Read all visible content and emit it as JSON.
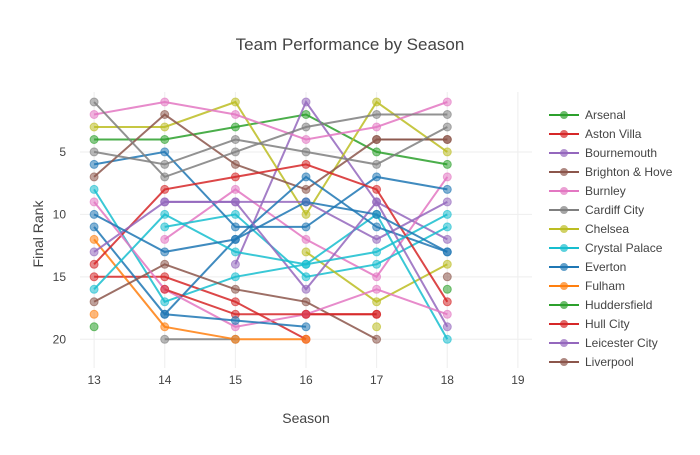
{
  "chart_data": {
    "type": "line",
    "title": "Team Performance by Season",
    "xlabel": "Season",
    "ylabel": "Final Rank",
    "x_ticks": [
      13,
      14,
      15,
      16,
      17,
      18,
      19
    ],
    "y_ticks": [
      5,
      10,
      15,
      20
    ],
    "xlim": [
      12.8,
      19.2
    ],
    "ylim": [
      22.3,
      0.2
    ],
    "y_reversed": true,
    "grid": true,
    "legend_position": "right",
    "series": [
      {
        "name": "Arsenal",
        "color": "#2ca02c",
        "points": [
          [
            13,
            4
          ],
          [
            14,
            4
          ],
          [
            15,
            3
          ],
          [
            16,
            2
          ],
          [
            17,
            5
          ],
          [
            18,
            6
          ]
        ]
      },
      {
        "name": "Aston Villa",
        "color": "#d62728",
        "points": [
          [
            13,
            15
          ],
          [
            14,
            15
          ],
          [
            15,
            17
          ],
          [
            16,
            20
          ]
        ]
      },
      {
        "name": "Bournemouth",
        "color": "#9467bd",
        "points": [
          [
            15,
            14
          ],
          [
            16,
            1
          ],
          [
            17,
            9
          ],
          [
            18,
            12
          ]
        ]
      },
      {
        "name": "Brighton & Hove",
        "color": "#8c564b",
        "points": [
          [
            17,
            4
          ],
          [
            18,
            4
          ]
        ]
      },
      {
        "name": "Burnley",
        "color": "#e377c2",
        "points": [
          [
            14,
            12
          ],
          [
            15,
            8
          ],
          [
            16,
            12
          ],
          [
            17,
            15
          ],
          [
            18,
            7
          ]
        ]
      },
      {
        "name": "Cardiff City",
        "color": "#7f7f7f",
        "points": [
          [
            14,
            20
          ],
          [
            15,
            20
          ]
        ]
      },
      {
        "name": "Chelsea",
        "color": "#bcbd22",
        "points": [
          [
            13,
            3
          ],
          [
            14,
            3
          ],
          [
            15,
            1
          ],
          [
            16,
            10
          ],
          [
            17,
            1
          ],
          [
            18,
            5
          ]
        ]
      },
      {
        "name": "Crystal Palace",
        "color": "#17becf",
        "points": [
          [
            14,
            11
          ],
          [
            15,
            10
          ],
          [
            16,
            15
          ],
          [
            17,
            14
          ],
          [
            18,
            11
          ]
        ]
      },
      {
        "name": "Everton",
        "color": "#1f77b4",
        "points": [
          [
            13,
            6
          ],
          [
            14,
            5
          ],
          [
            15,
            11
          ],
          [
            16,
            11
          ],
          [
            17,
            7
          ],
          [
            18,
            8
          ]
        ]
      },
      {
        "name": "Fulham",
        "color": "#ff7f0e",
        "points": [
          [
            13,
            12
          ],
          [
            14,
            19
          ],
          [
            15,
            20
          ],
          [
            16,
            20
          ]
        ]
      },
      {
        "name": "Huddersfield",
        "color": "#2ca02c",
        "points": [
          [
            18,
            16
          ]
        ]
      },
      {
        "name": "Hull City",
        "color": "#d62728",
        "points": [
          [
            16,
            18
          ],
          [
            17,
            18
          ]
        ]
      },
      {
        "name": "Leicester City",
        "color": "#9467bd",
        "points": [
          [
            14,
            9
          ],
          [
            15,
            9
          ],
          [
            16,
            9
          ],
          [
            17,
            12
          ],
          [
            18,
            9
          ]
        ]
      },
      {
        "name": "Liverpool",
        "color": "#8c564b",
        "points": [
          [
            13,
            7
          ],
          [
            14,
            2
          ],
          [
            15,
            6
          ],
          [
            16,
            8
          ],
          [
            17,
            4
          ],
          [
            18,
            4
          ]
        ]
      },
      {
        "name": "",
        "color": "#e377c2",
        "points": [
          [
            13,
            2
          ],
          [
            14,
            1
          ],
          [
            15,
            2
          ],
          [
            16,
            4
          ],
          [
            17,
            3
          ],
          [
            18,
            1
          ]
        ]
      },
      {
        "name": "",
        "color": "#7f7f7f",
        "points": [
          [
            13,
            1
          ],
          [
            14,
            7
          ],
          [
            15,
            5
          ],
          [
            16,
            3
          ],
          [
            17,
            2
          ],
          [
            18,
            2
          ]
        ]
      },
      {
        "name": "",
        "color": "#bcbd22",
        "points": [
          [
            16,
            13
          ],
          [
            17,
            17
          ],
          [
            18,
            14
          ]
        ]
      },
      {
        "name": "",
        "color": "#17becf",
        "points": [
          [
            13,
            8
          ],
          [
            14,
            17
          ],
          [
            15,
            15
          ],
          [
            16,
            14
          ],
          [
            17,
            10
          ],
          [
            18,
            20
          ]
        ]
      },
      {
        "name": "",
        "color": "#1f77b4",
        "points": [
          [
            13,
            11
          ],
          [
            14,
            18
          ],
          [
            15,
            12
          ],
          [
            16,
            7
          ],
          [
            17,
            11
          ],
          [
            18,
            13
          ]
        ]
      },
      {
        "name": "",
        "color": "#ff7f0e",
        "points": [
          [
            13,
            18
          ]
        ]
      },
      {
        "name": "",
        "color": "#2ca02c",
        "points": [
          [
            13,
            19
          ]
        ]
      },
      {
        "name": "",
        "color": "#d62728",
        "points": [
          [
            13,
            14
          ],
          [
            14,
            8
          ],
          [
            15,
            7
          ],
          [
            16,
            6
          ],
          [
            17,
            8
          ],
          [
            18,
            17
          ]
        ]
      },
      {
        "name": "",
        "color": "#9467bd",
        "points": [
          [
            13,
            13
          ],
          [
            14,
            9
          ],
          [
            15,
            9
          ],
          [
            16,
            16
          ],
          [
            17,
            9
          ],
          [
            18,
            19
          ]
        ]
      },
      {
        "name": "",
        "color": "#8c564b",
        "points": [
          [
            13,
            17
          ],
          [
            14,
            14
          ],
          [
            15,
            16
          ],
          [
            16,
            17
          ],
          [
            17,
            20
          ]
        ]
      },
      {
        "name": "",
        "color": "#e377c2",
        "points": [
          [
            13,
            9
          ],
          [
            14,
            16
          ],
          [
            15,
            19
          ],
          [
            16,
            18
          ],
          [
            17,
            16
          ],
          [
            18,
            18
          ]
        ]
      },
      {
        "name": "",
        "color": "#7f7f7f",
        "points": [
          [
            13,
            5
          ],
          [
            14,
            6
          ],
          [
            15,
            4
          ],
          [
            16,
            5
          ],
          [
            17,
            6
          ],
          [
            18,
            3
          ]
        ]
      },
      {
        "name": "",
        "color": "#bcbd22",
        "points": [
          [
            17,
            19
          ]
        ]
      },
      {
        "name": "",
        "color": "#17becf",
        "points": [
          [
            13,
            16
          ],
          [
            14,
            10
          ],
          [
            15,
            13
          ],
          [
            16,
            14
          ],
          [
            17,
            13
          ],
          [
            18,
            10
          ]
        ]
      },
      {
        "name": "",
        "color": "#1f77b4",
        "points": [
          [
            13,
            10
          ],
          [
            14,
            13
          ],
          [
            15,
            12
          ],
          [
            16,
            9
          ],
          [
            17,
            10
          ],
          [
            18,
            13
          ]
        ]
      },
      {
        "name": "",
        "color": "#8c564b",
        "points": [
          [
            18,
            15
          ]
        ]
      },
      {
        "name": "",
        "color": "#d62728",
        "points": [
          [
            14,
            16
          ],
          [
            15,
            18
          ],
          [
            16,
            18
          ],
          [
            17,
            18
          ]
        ]
      },
      {
        "name": "",
        "color": "#1f77b4",
        "points": [
          [
            14,
            18
          ],
          [
            15,
            18.5
          ],
          [
            16,
            19
          ]
        ]
      }
    ]
  }
}
